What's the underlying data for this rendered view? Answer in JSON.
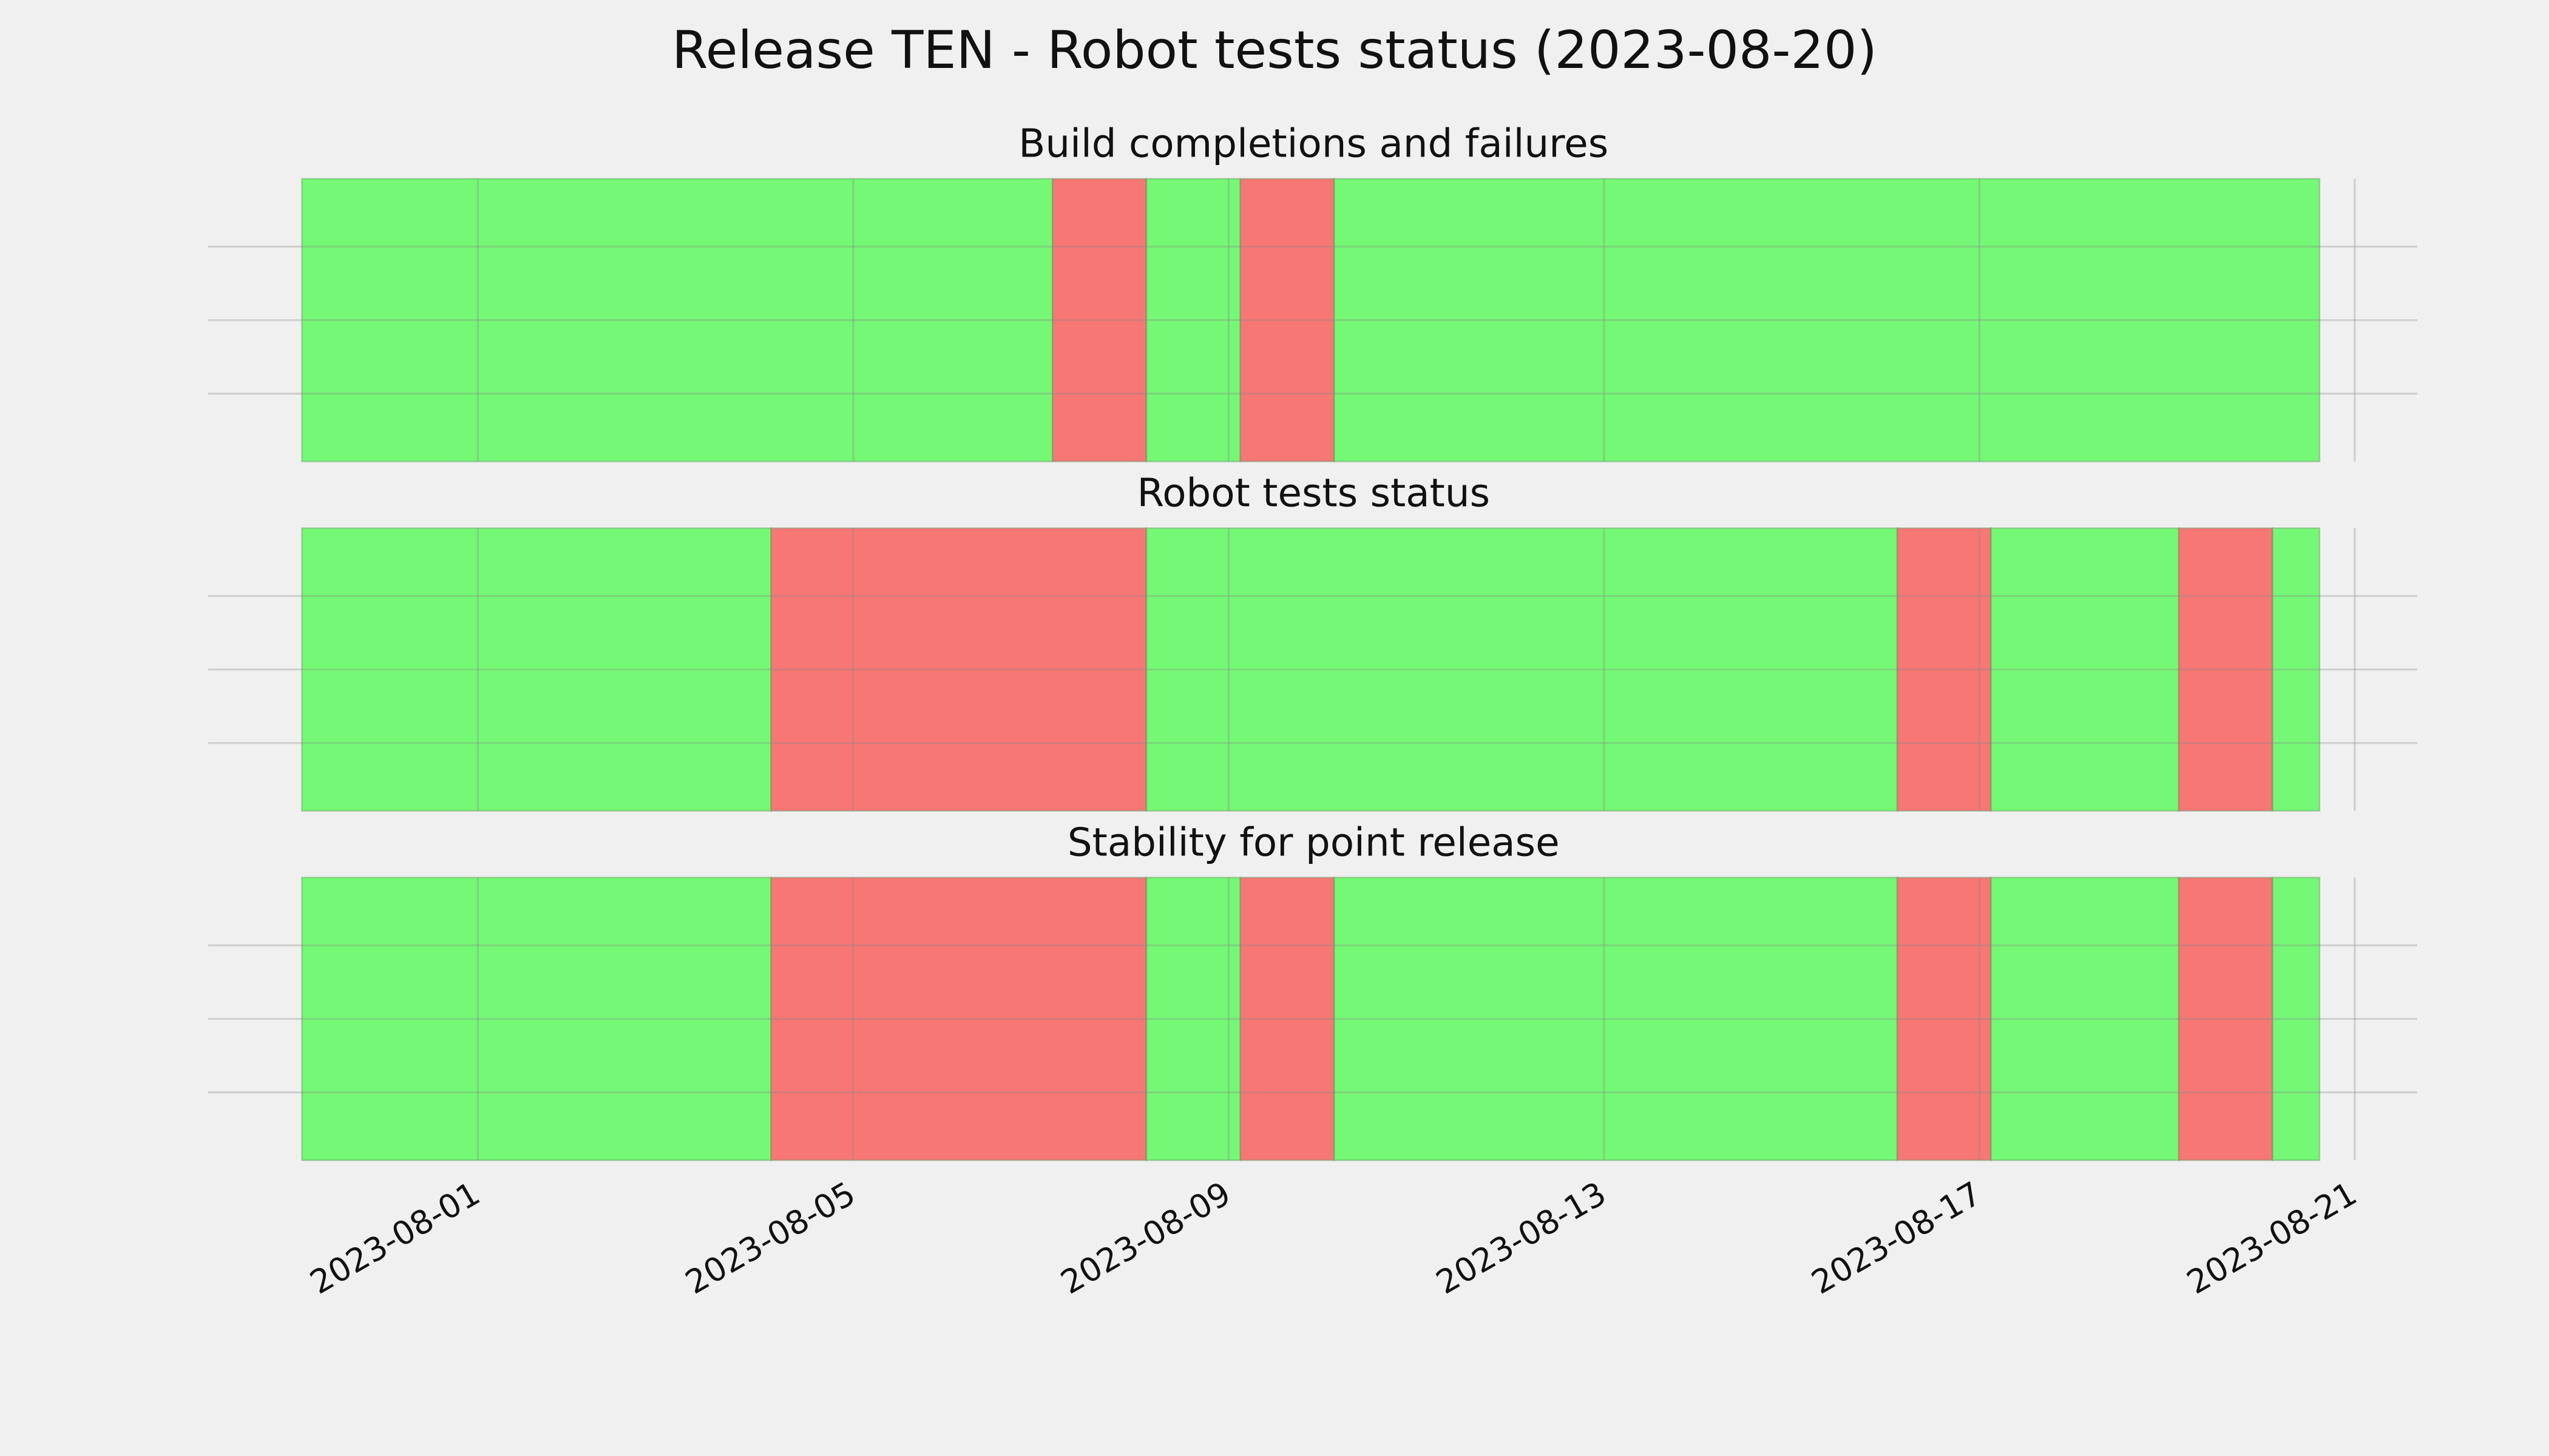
{
  "chart_data": [
    {
      "type": "timeline",
      "title": "Release TEN - Robot tests status (2023-08-20)",
      "subtitle": "Build completions and failures",
      "xlim": [
        "2023-07-29T03:00",
        "2023-08-21T16:00"
      ],
      "xticks": [
        "2023-08-01",
        "2023-08-05",
        "2023-08-09",
        "2023-08-13",
        "2023-08-17",
        "2023-08-21"
      ],
      "grid": true,
      "segments": [
        {
          "start": "2023-07-30T03:00",
          "end": "2023-08-07T03:00",
          "color": "#75f875"
        },
        {
          "start": "2023-08-07T03:00",
          "end": "2023-08-08T03:00",
          "color": "#f77775"
        },
        {
          "start": "2023-08-08T03:00",
          "end": "2023-08-09T03:00",
          "color": "#75f875"
        },
        {
          "start": "2023-08-09T03:00",
          "end": "2023-08-10T03:00",
          "color": "#f77775"
        },
        {
          "start": "2023-08-10T03:00",
          "end": "2023-08-20T15:00",
          "color": "#75f875"
        }
      ]
    },
    {
      "type": "timeline",
      "subtitle": "Robot tests status",
      "xlim": [
        "2023-07-29T03:00",
        "2023-08-21T16:00"
      ],
      "xticks": [
        "2023-08-01",
        "2023-08-05",
        "2023-08-09",
        "2023-08-13",
        "2023-08-17",
        "2023-08-21"
      ],
      "grid": true,
      "segments": [
        {
          "start": "2023-07-30T03:00",
          "end": "2023-08-04T03:00",
          "color": "#75f875"
        },
        {
          "start": "2023-08-04T03:00",
          "end": "2023-08-08T03:00",
          "color": "#f77775"
        },
        {
          "start": "2023-08-08T03:00",
          "end": "2023-08-16T03:00",
          "color": "#75f875"
        },
        {
          "start": "2023-08-16T03:00",
          "end": "2023-08-17T03:00",
          "color": "#f77775"
        },
        {
          "start": "2023-08-17T03:00",
          "end": "2023-08-19T03:00",
          "color": "#75f875"
        },
        {
          "start": "2023-08-19T03:00",
          "end": "2023-08-20T03:00",
          "color": "#f77775"
        },
        {
          "start": "2023-08-20T03:00",
          "end": "2023-08-20T15:00",
          "color": "#75f875"
        }
      ]
    },
    {
      "type": "timeline",
      "subtitle": "Stability for point release",
      "xlim": [
        "2023-07-29T03:00",
        "2023-08-21T16:00"
      ],
      "xticks": [
        "2023-08-01",
        "2023-08-05",
        "2023-08-09",
        "2023-08-13",
        "2023-08-17",
        "2023-08-21"
      ],
      "grid": true,
      "segments": [
        {
          "start": "2023-07-30T03:00",
          "end": "2023-08-04T03:00",
          "color": "#75f875"
        },
        {
          "start": "2023-08-04T03:00",
          "end": "2023-08-08T03:00",
          "color": "#f77775"
        },
        {
          "start": "2023-08-08T03:00",
          "end": "2023-08-09T03:00",
          "color": "#75f875"
        },
        {
          "start": "2023-08-09T03:00",
          "end": "2023-08-10T03:00",
          "color": "#f77775"
        },
        {
          "start": "2023-08-10T03:00",
          "end": "2023-08-16T03:00",
          "color": "#75f875"
        },
        {
          "start": "2023-08-16T03:00",
          "end": "2023-08-17T03:00",
          "color": "#f77775"
        },
        {
          "start": "2023-08-17T03:00",
          "end": "2023-08-19T03:00",
          "color": "#75f875"
        },
        {
          "start": "2023-08-19T03:00",
          "end": "2023-08-20T03:00",
          "color": "#f77775"
        },
        {
          "start": "2023-08-20T03:00",
          "end": "2023-08-20T15:00",
          "color": "#75f875"
        }
      ]
    }
  ]
}
